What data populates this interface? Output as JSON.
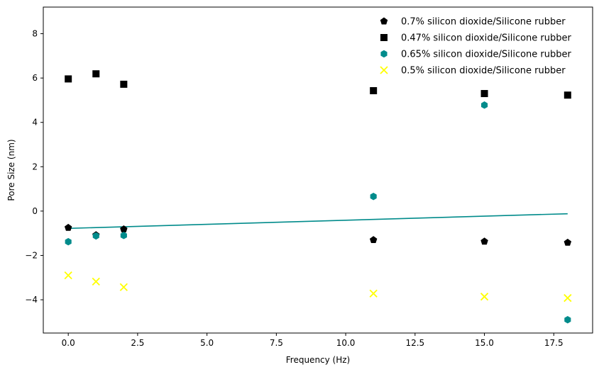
{
  "chart_data": {
    "type": "scatter",
    "title": "",
    "xlabel": "Frequency (Hz)",
    "ylabel": "Pore Size (nm)",
    "xlim": [
      -0.9,
      18.9
    ],
    "ylim": [
      -5.5,
      9.2
    ],
    "x_ticks": [
      0.0,
      2.5,
      5.0,
      7.5,
      10.0,
      12.5,
      15.0,
      17.5
    ],
    "x_tick_labels": [
      "0.0",
      "2.5",
      "5.0",
      "7.5",
      "10.0",
      "12.5",
      "15.0",
      "17.5"
    ],
    "y_ticks": [
      -4,
      -2,
      0,
      2,
      4,
      6,
      8
    ],
    "y_tick_labels": [
      "−4",
      "−2",
      "0",
      "2",
      "4",
      "6",
      "8"
    ],
    "grid": false,
    "legend_position": "top-right",
    "series": [
      {
        "name": "0.7% silicon dioxide/Silicone rubber",
        "marker": "pentagon",
        "color": "#000000",
        "x": [
          0,
          1,
          2,
          11,
          15,
          18
        ],
        "y": [
          -0.75,
          -1.08,
          -0.82,
          -1.3,
          -1.37,
          -1.42
        ]
      },
      {
        "name": "0.47% silicon dioxide/Silicone rubber",
        "marker": "square",
        "color": "#000000",
        "x": [
          0,
          1,
          2,
          11,
          15,
          18
        ],
        "y": [
          5.96,
          6.19,
          5.72,
          5.43,
          5.3,
          5.23
        ]
      },
      {
        "name": "0.65% silicon dioxide/Silicone rubber",
        "marker": "hexagon",
        "color": "#008b8b",
        "x": [
          0,
          1,
          2,
          11,
          15,
          18
        ],
        "y": [
          -1.38,
          -1.12,
          -1.1,
          0.66,
          4.78,
          -4.9
        ]
      },
      {
        "name": "0.5% silicon dioxide/Silicone rubber",
        "marker": "x",
        "color": "#ffff00",
        "x": [
          0,
          1,
          2,
          11,
          15,
          18
        ],
        "y": [
          -2.9,
          -3.18,
          -3.43,
          -3.72,
          -3.86,
          -3.92
        ]
      }
    ],
    "trend_line": {
      "color": "#008b8b",
      "x": [
        0,
        18
      ],
      "y": [
        -0.78,
        -0.12
      ]
    }
  }
}
